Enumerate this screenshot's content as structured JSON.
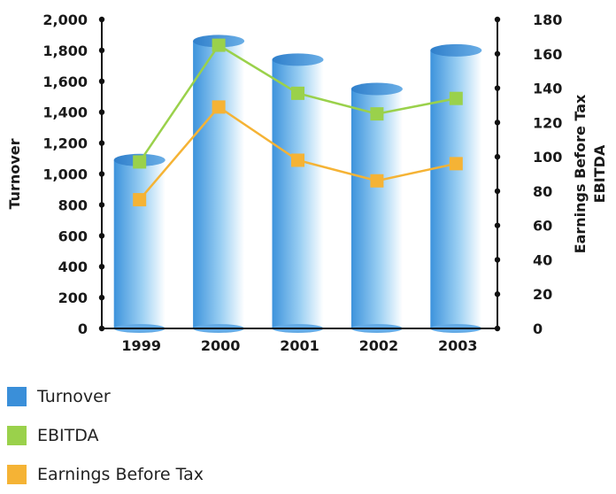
{
  "chart_data": {
    "type": "bar",
    "categories": [
      "1999",
      "2000",
      "2001",
      "2002",
      "2003"
    ],
    "series": [
      {
        "name": "Turnover",
        "type": "bar",
        "axis": "left",
        "values": [
          1090,
          1860,
          1740,
          1550,
          1800
        ],
        "color": "#3a8fd9"
      },
      {
        "name": "EBITDA",
        "type": "line",
        "axis": "right",
        "values": [
          97,
          165,
          137,
          125,
          134
        ],
        "color": "#9ad14b"
      },
      {
        "name": "Earnings Before Tax",
        "type": "line",
        "axis": "right",
        "values": [
          75,
          129,
          98,
          86,
          96
        ],
        "color": "#f5b335"
      }
    ],
    "ylabel_left": "Turnover",
    "ylabel_right": [
      "Earnings Before Tax",
      "EBITDA"
    ],
    "ylim_left": [
      0,
      2000
    ],
    "yticks_left": [
      "0",
      "200",
      "400",
      "600",
      "800",
      "1,000",
      "1,200",
      "1,400",
      "1,600",
      "1,800",
      "2,000"
    ],
    "ylim_right": [
      0,
      180
    ],
    "yticks_right": [
      "0",
      "20",
      "40",
      "60",
      "80",
      "100",
      "120",
      "140",
      "160",
      "180"
    ],
    "grid": false,
    "legend_position": "bottom-left"
  }
}
